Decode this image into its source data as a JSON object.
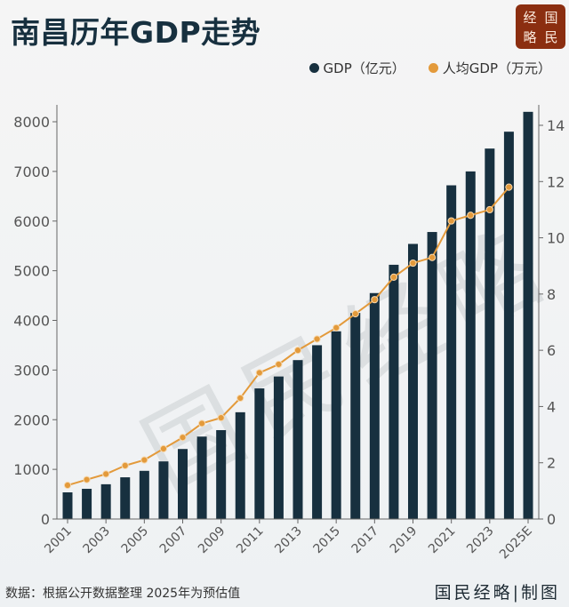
{
  "header": {
    "title": "南昌历年GDP走势",
    "logo_chars": [
      "经",
      "国",
      "略",
      "民"
    ]
  },
  "legend": {
    "items": [
      {
        "label": "GDP（亿元）",
        "color": "#17303f"
      },
      {
        "label": "人均GDP（万元）",
        "color": "#e39a3b"
      }
    ]
  },
  "watermark": "国民经略",
  "footer": {
    "source": "数据：根据公开数据整理 2025年为预估值",
    "brand": "国民经略|制图"
  },
  "colors": {
    "bar": "#17303f",
    "line": "#e39a3b",
    "axis": "#666666",
    "tick_text": "#555555"
  },
  "chart_data": {
    "type": "bar",
    "title": "南昌历年GDP走势",
    "xlabel": "",
    "ylabel": "GDP（亿元）",
    "y2label": "人均GDP（万元）",
    "categories": [
      "2001",
      "2002",
      "2003",
      "2004",
      "2005",
      "2006",
      "2007",
      "2008",
      "2009",
      "2010",
      "2011",
      "2012",
      "2013",
      "2014",
      "2015",
      "2016",
      "2017",
      "2018",
      "2019",
      "2020",
      "2021",
      "2022",
      "2023",
      "2024",
      "2025E"
    ],
    "x_tick_labels": [
      "2001",
      "2003",
      "2005",
      "2007",
      "2009",
      "2011",
      "2013",
      "2015",
      "2017",
      "2019",
      "2021",
      "2023",
      "2025E"
    ],
    "ylim": [
      0,
      8400
    ],
    "y_ticks": [
      0,
      1000,
      2000,
      3000,
      4000,
      5000,
      6000,
      7000,
      8000
    ],
    "y2lim": [
      0,
      14.8
    ],
    "y2_ticks": [
      0,
      2,
      4,
      6,
      8,
      10,
      12,
      14
    ],
    "grid": false,
    "legend_position": "top-right",
    "series": [
      {
        "name": "GDP（亿元）",
        "type": "bar",
        "axis": "left",
        "values": [
          537,
          608,
          700,
          840,
          970,
          1160,
          1410,
          1660,
          1790,
          2150,
          2630,
          2870,
          3200,
          3500,
          3780,
          4150,
          4550,
          5120,
          5540,
          5780,
          6720,
          7000,
          7460,
          7800,
          8200
        ]
      },
      {
        "name": "人均GDP（万元）",
        "type": "line",
        "axis": "right",
        "values": [
          1.2,
          1.4,
          1.6,
          1.9,
          2.1,
          2.5,
          2.9,
          3.4,
          3.6,
          4.3,
          5.2,
          5.5,
          6.0,
          6.4,
          6.8,
          7.3,
          7.8,
          8.6,
          9.1,
          9.3,
          10.6,
          10.8,
          11.0,
          11.8,
          null
        ]
      }
    ]
  }
}
